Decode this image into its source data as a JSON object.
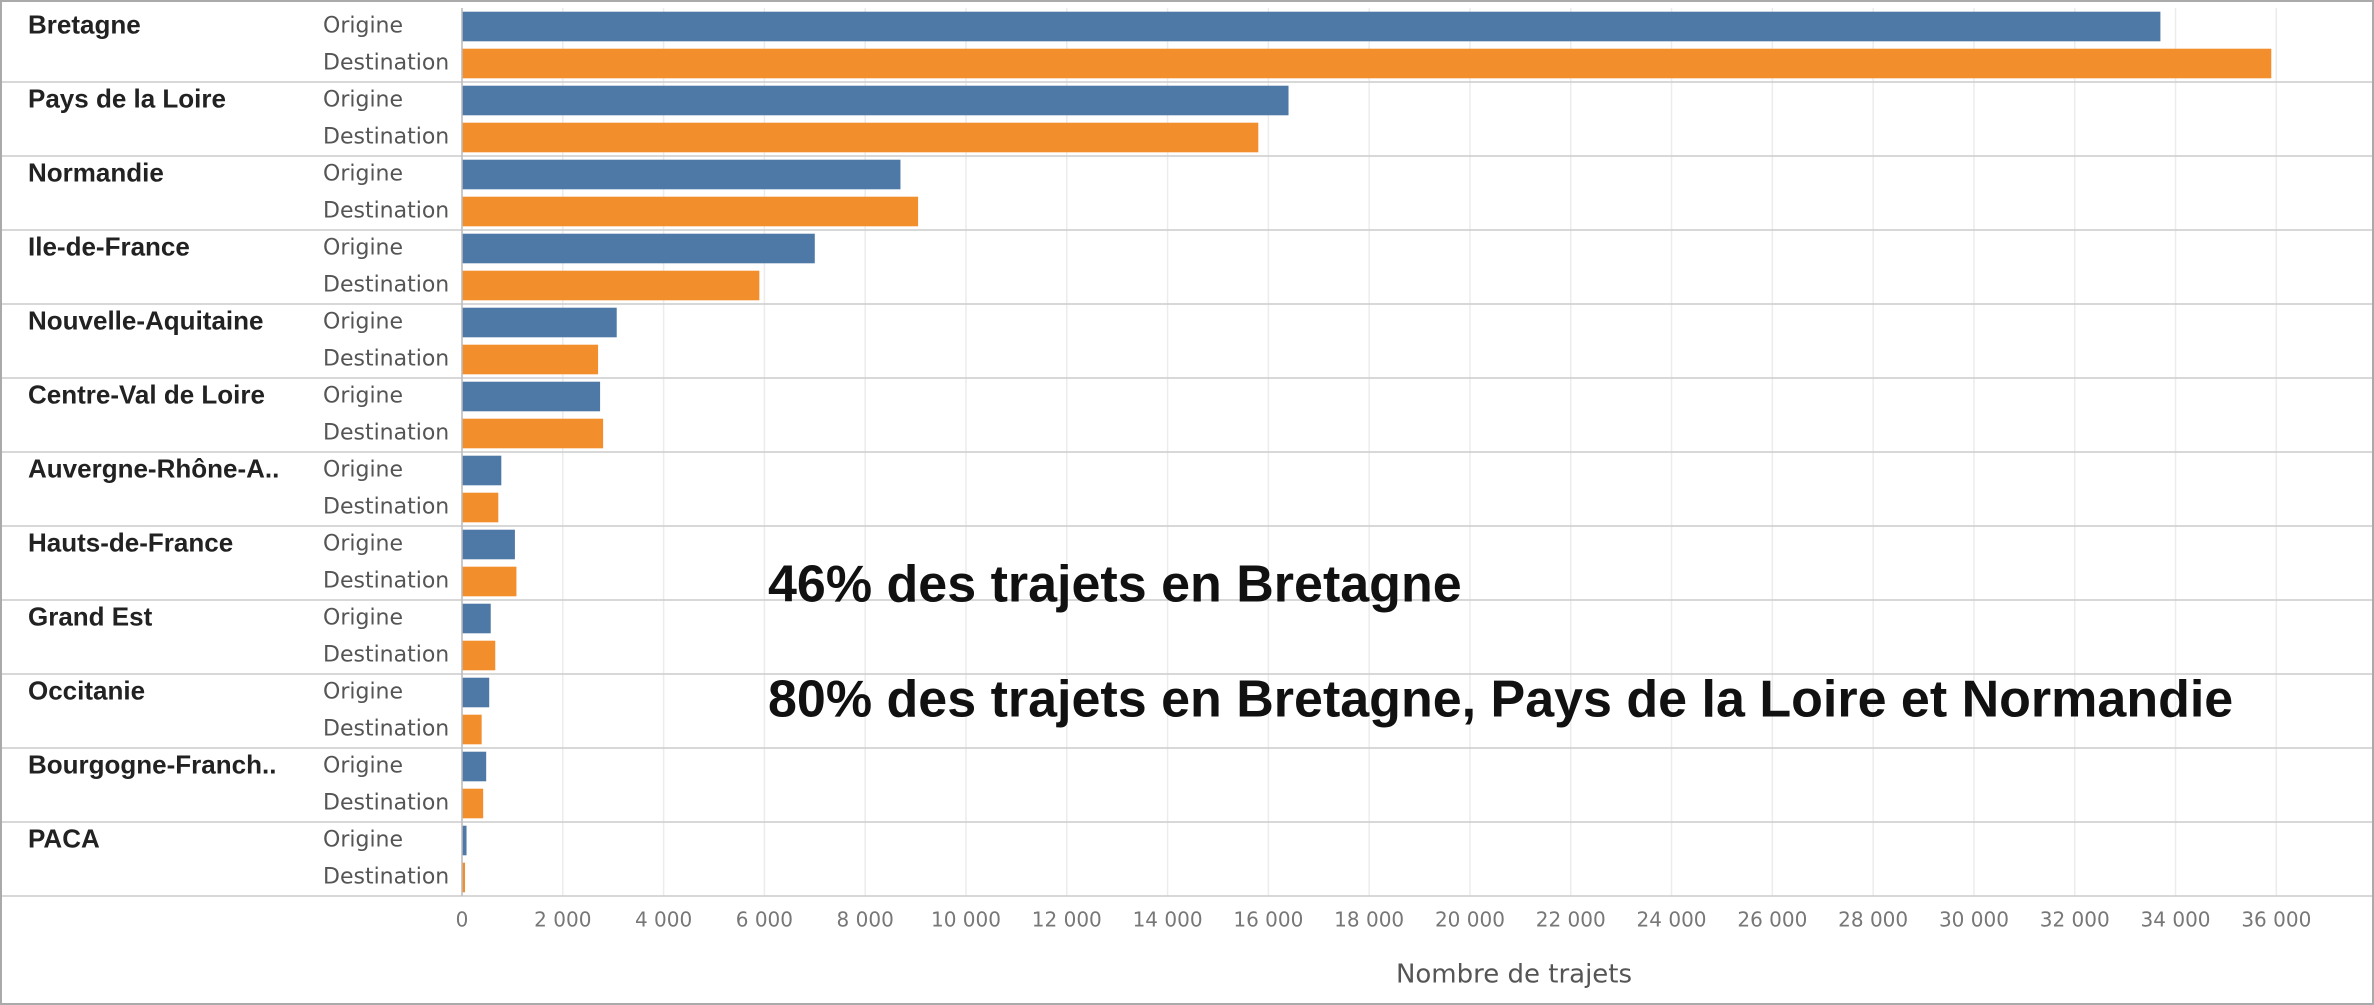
{
  "chart_data": {
    "type": "bar",
    "orientation": "horizontal",
    "categories": [
      "Bretagne",
      "Pays de la Loire",
      "Normandie",
      "Ile-de-France",
      "Nouvelle-Aquitaine",
      "Centre-Val de Loire",
      "Auvergne-Rhône-A..",
      "Hauts-de-France",
      "Grand Est",
      "Occitanie",
      "Bourgogne-Franch..",
      "PACA"
    ],
    "series": [
      {
        "name": "Origine",
        "color": "#4e79a7",
        "values": [
          33700,
          16400,
          8700,
          7000,
          3070,
          2740,
          780,
          1050,
          570,
          540,
          480,
          90
        ]
      },
      {
        "name": "Destination",
        "color": "#f28e2b",
        "values": [
          35900,
          15800,
          9050,
          5900,
          2700,
          2800,
          720,
          1080,
          660,
          390,
          420,
          60
        ]
      }
    ],
    "xlabel": "Nombre de trajets",
    "xlim": [
      0,
      37700
    ],
    "xticks": [
      0,
      {
        "value": 2000,
        "label": "2 000"
      },
      {
        "value": 4000,
        "label": "4 000"
      },
      {
        "value": 6000,
        "label": "6 000"
      },
      {
        "value": 8000,
        "label": "8 000"
      },
      {
        "value": 10000,
        "label": "10 000"
      },
      {
        "value": 12000,
        "label": "12 000"
      },
      {
        "value": 14000,
        "label": "14 000"
      },
      {
        "value": 16000,
        "label": "16 000"
      },
      {
        "value": 18000,
        "label": "18 000"
      },
      {
        "value": 20000,
        "label": "20 000"
      },
      {
        "value": 22000,
        "label": "22 000"
      },
      {
        "value": 24000,
        "label": "24 000"
      },
      {
        "value": 26000,
        "label": "26 000"
      },
      {
        "value": 28000,
        "label": "28 000"
      },
      {
        "value": 30000,
        "label": "30 000"
      },
      {
        "value": 32000,
        "label": "32 000"
      },
      {
        "value": 34000,
        "label": "34 000"
      },
      {
        "value": 36000,
        "label": "36 000"
      }
    ],
    "grid": true,
    "annotations": [
      "46% des trajets en Bretagne",
      "80% des trajets en Bretagne, Pays de la Loire et Normandie"
    ]
  }
}
